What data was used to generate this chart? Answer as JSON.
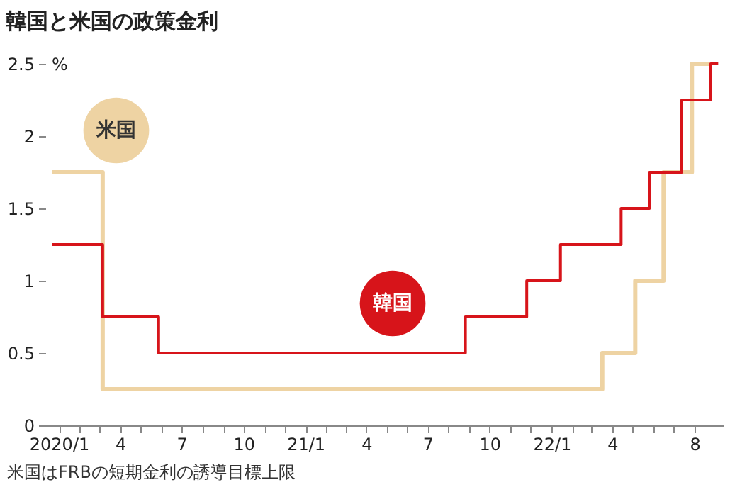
{
  "chart_data": {
    "type": "step",
    "title": "韓国と米国の政策金利",
    "ylabel": "%",
    "annotations": [
      "米国はFRBの短期金利の誘導目標上限"
    ],
    "xlim": [
      "2019-12-12",
      "2022-09-12"
    ],
    "xticks": [
      {
        "value": "2020-01-01",
        "label": "2020/1"
      },
      {
        "value": "2020-02-01",
        "label": null
      },
      {
        "value": "2020-03-01",
        "label": null
      },
      {
        "value": "2020-04-01",
        "label": "4"
      },
      {
        "value": "2020-05-01",
        "label": null
      },
      {
        "value": "2020-06-01",
        "label": null
      },
      {
        "value": "2020-07-01",
        "label": "7"
      },
      {
        "value": "2020-08-01",
        "label": null
      },
      {
        "value": "2020-09-01",
        "label": null
      },
      {
        "value": "2020-10-01",
        "label": "10"
      },
      {
        "value": "2020-11-01",
        "label": null
      },
      {
        "value": "2020-12-01",
        "label": null
      },
      {
        "value": "2021-01-01",
        "label": "21/1"
      },
      {
        "value": "2021-02-01",
        "label": null
      },
      {
        "value": "2021-03-01",
        "label": null
      },
      {
        "value": "2021-04-01",
        "label": "4"
      },
      {
        "value": "2021-05-01",
        "label": null
      },
      {
        "value": "2021-06-01",
        "label": null
      },
      {
        "value": "2021-07-01",
        "label": "7"
      },
      {
        "value": "2021-08-01",
        "label": null
      },
      {
        "value": "2021-09-01",
        "label": null
      },
      {
        "value": "2021-10-01",
        "label": "10"
      },
      {
        "value": "2021-11-01",
        "label": null
      },
      {
        "value": "2021-12-01",
        "label": null
      },
      {
        "value": "2022-01-01",
        "label": "22/1"
      },
      {
        "value": "2022-02-01",
        "label": null
      },
      {
        "value": "2022-03-01",
        "label": null
      },
      {
        "value": "2022-04-01",
        "label": "4"
      },
      {
        "value": "2022-05-01",
        "label": null
      },
      {
        "value": "2022-06-01",
        "label": null
      },
      {
        "value": "2022-07-01",
        "label": null
      },
      {
        "value": "2022-08-01",
        "label": "8"
      }
    ],
    "ylim": [
      0,
      2.5
    ],
    "yticks": [
      0,
      0.5,
      1.0,
      1.5,
      2.0,
      2.5
    ],
    "series": [
      {
        "name": "米国",
        "color": "#eed3a3",
        "x": [
          "2019-12-22",
          "2020-03-06",
          "2022-03-17",
          "2022-05-05",
          "2022-06-16",
          "2022-07-28",
          "2022-08-25"
        ],
        "values": [
          1.75,
          0.25,
          0.5,
          1.0,
          1.75,
          2.5,
          2.5
        ]
      },
      {
        "name": "韓国",
        "color": "#d7141a",
        "x": [
          "2019-12-22",
          "2020-03-06",
          "2020-05-28",
          "2021-08-26",
          "2021-11-25",
          "2022-01-14",
          "2022-04-14",
          "2022-05-26",
          "2022-07-13",
          "2022-08-25",
          "2022-09-05"
        ],
        "values": [
          1.25,
          0.75,
          0.5,
          0.75,
          1.0,
          1.25,
          1.5,
          1.75,
          2.25,
          2.5,
          2.5
        ]
      }
    ]
  }
}
